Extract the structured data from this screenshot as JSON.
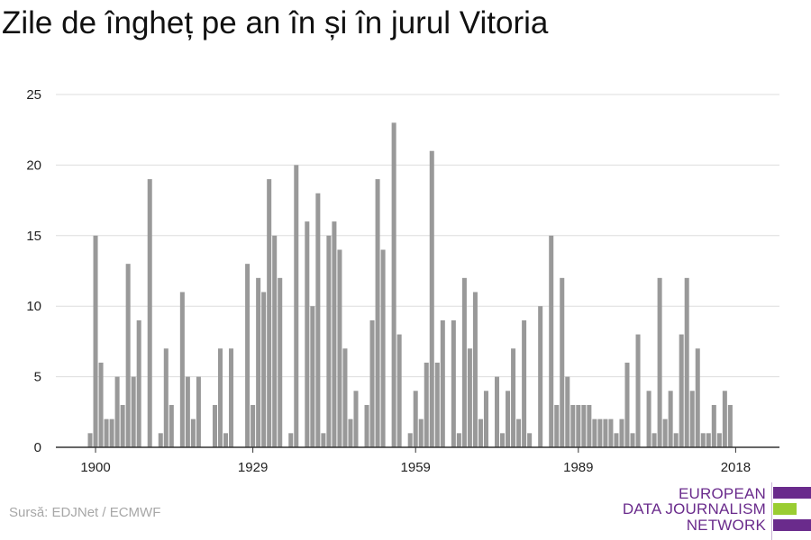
{
  "title": "Zile de îngheț pe an în și în jurul Vitoria",
  "source": "Sursă: EDJNet / ECMWF",
  "logo": {
    "line1": "EUROPEAN",
    "line2": "DATA JOURNALISM",
    "line3": "NETWORK",
    "colors": [
      "#6a2b8c",
      "#9acd32",
      "#6a2b8c"
    ]
  },
  "colors": {
    "bar": "#999999",
    "grid": "#dddddd",
    "axis": "#333333",
    "text": "#222222"
  },
  "chart_data": {
    "type": "bar",
    "title": "Zile de îngheț pe an în și în jurul Vitoria",
    "xlabel": "",
    "ylabel": "",
    "ylim": [
      0,
      25
    ],
    "yticks": [
      0,
      5,
      10,
      15,
      20,
      25
    ],
    "xticks": [
      1900,
      1929,
      1959,
      1989,
      2018
    ],
    "grid": true,
    "x": [
      1899,
      1900,
      1901,
      1902,
      1903,
      1904,
      1905,
      1906,
      1907,
      1908,
      1909,
      1910,
      1911,
      1912,
      1913,
      1914,
      1915,
      1916,
      1917,
      1918,
      1919,
      1920,
      1921,
      1922,
      1923,
      1924,
      1925,
      1926,
      1927,
      1928,
      1929,
      1930,
      1931,
      1932,
      1933,
      1934,
      1935,
      1936,
      1937,
      1938,
      1939,
      1940,
      1941,
      1942,
      1943,
      1944,
      1945,
      1946,
      1947,
      1948,
      1949,
      1950,
      1951,
      1952,
      1953,
      1954,
      1955,
      1956,
      1957,
      1958,
      1959,
      1960,
      1961,
      1962,
      1963,
      1964,
      1965,
      1966,
      1967,
      1968,
      1969,
      1970,
      1971,
      1972,
      1973,
      1974,
      1975,
      1976,
      1977,
      1978,
      1979,
      1980,
      1981,
      1982,
      1983,
      1984,
      1985,
      1986,
      1987,
      1988,
      1989,
      1990,
      1991,
      1992,
      1993,
      1994,
      1995,
      1996,
      1997,
      1998,
      1999,
      2000,
      2001,
      2002,
      2003,
      2004,
      2005,
      2006,
      2007,
      2008,
      2009,
      2010,
      2011,
      2012,
      2013,
      2014,
      2015,
      2016,
      2017,
      2018,
      2019
    ],
    "values": [
      1,
      15,
      6,
      2,
      2,
      5,
      3,
      13,
      5,
      9,
      0,
      19,
      0,
      1,
      7,
      3,
      0,
      11,
      5,
      2,
      5,
      0,
      0,
      3,
      7,
      1,
      7,
      0,
      0,
      13,
      3,
      12,
      11,
      19,
      15,
      12,
      0,
      1,
      20,
      0,
      16,
      10,
      18,
      1,
      15,
      16,
      14,
      7,
      2,
      4,
      0,
      3,
      9,
      19,
      14,
      0,
      23,
      8,
      0,
      1,
      4,
      2,
      6,
      21,
      6,
      9,
      0,
      9,
      1,
      12,
      7,
      11,
      2,
      4,
      0,
      5,
      1,
      4,
      7,
      2,
      9,
      1,
      0,
      10,
      0,
      15,
      3,
      12,
      5,
      3,
      3,
      3,
      3,
      2,
      2,
      2,
      2,
      1,
      2,
      6,
      1,
      8,
      0,
      4,
      1,
      12,
      2,
      4,
      1,
      8,
      12,
      4,
      7,
      1,
      1,
      3,
      1,
      4,
      3,
      0,
      0
    ]
  }
}
